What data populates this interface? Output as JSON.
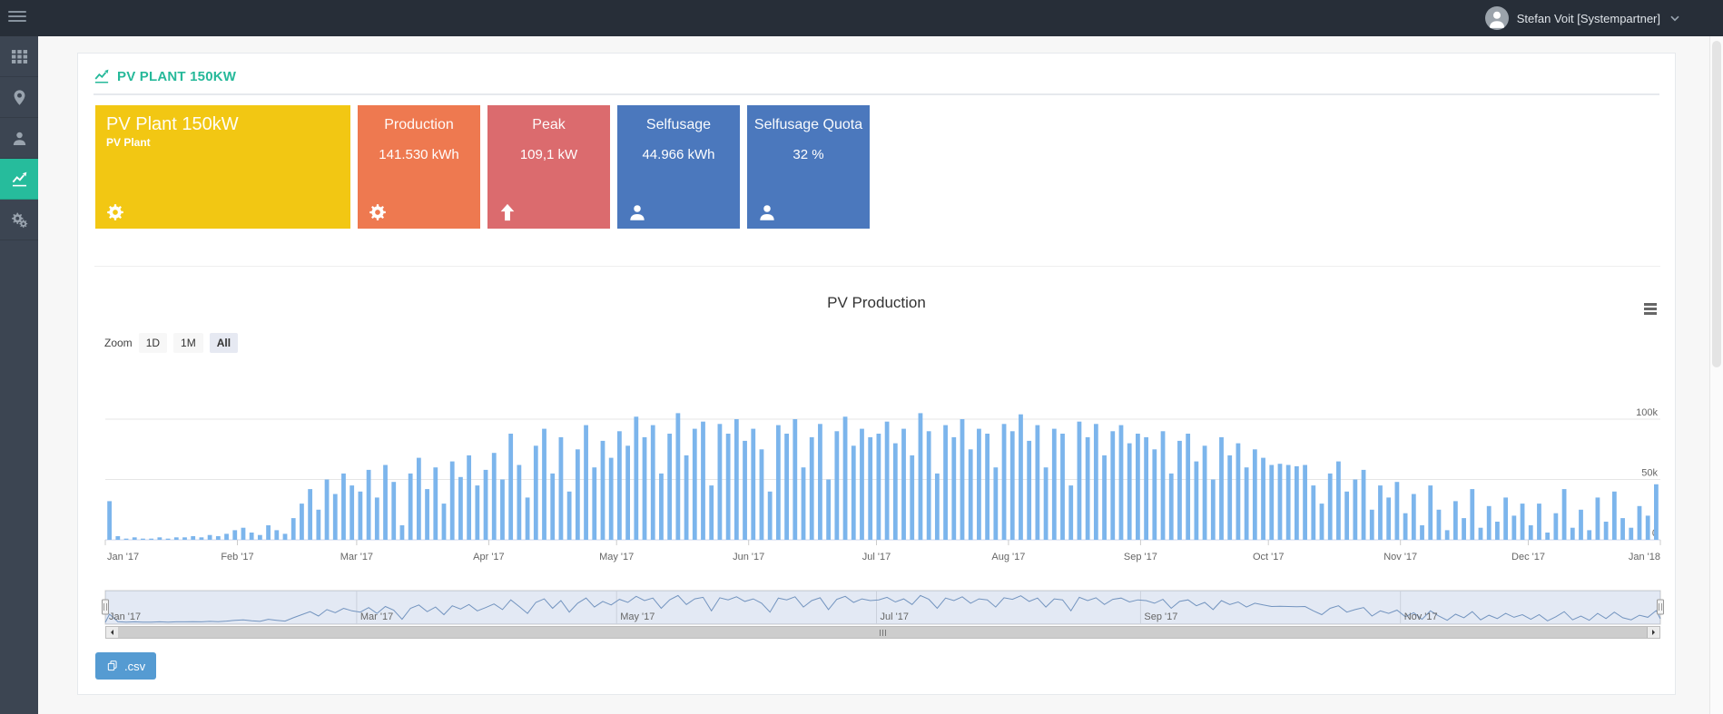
{
  "topbar": {
    "user_name": "Stefan Voit [Systempartner]"
  },
  "sidebar": {
    "items": [
      {
        "name": "dashboard",
        "icon": "grid-icon",
        "active": false
      },
      {
        "name": "locations",
        "icon": "map-marker-icon",
        "active": false
      },
      {
        "name": "users",
        "icon": "user-icon",
        "active": false
      },
      {
        "name": "charts",
        "icon": "chart-line-icon",
        "active": true
      },
      {
        "name": "settings",
        "icon": "cogs-icon",
        "active": false
      }
    ]
  },
  "page": {
    "title": "PV PLANT 150KW",
    "title_icon": "chart-line-icon",
    "accent_color": "#26b99a"
  },
  "tiles": [
    {
      "title": "PV Plant 150kW",
      "subtitle": "PV Plant",
      "value": "",
      "icon": "gear-icon",
      "color": "#f2c713",
      "wide": true
    },
    {
      "title": "Production",
      "subtitle": "",
      "value": "141.530 kWh",
      "icon": "gear-icon",
      "color": "#ee7950",
      "wide": false
    },
    {
      "title": "Peak",
      "subtitle": "",
      "value": "109,1 kW",
      "icon": "arrow-up-icon",
      "color": "#db6b6e",
      "wide": false
    },
    {
      "title": "Selfusage",
      "subtitle": "",
      "value": "44.966 kWh",
      "icon": "user-icon",
      "color": "#4b78bd",
      "wide": false
    },
    {
      "title": "Selfusage Quota",
      "subtitle": "",
      "value": "32 %",
      "icon": "user-icon",
      "color": "#4b78bd",
      "wide": false
    }
  ],
  "chart": {
    "title": "PV Production",
    "zoom_label": "Zoom",
    "zoom_buttons": [
      "1D",
      "1M",
      "All"
    ],
    "selected_zoom": "All"
  },
  "export": {
    "csv_label": ".csv",
    "icon": "copy-icon",
    "button_color": "#559bd2"
  },
  "chart_data": {
    "type": "bar",
    "title": "PV Production",
    "bar_color": "#7cb5ec",
    "grid": true,
    "legend": "none",
    "x_axis": {
      "unit": "day",
      "total_days": 365,
      "ticks": [
        {
          "day": 0,
          "label": "Jan '17"
        },
        {
          "day": 31,
          "label": "Feb '17"
        },
        {
          "day": 59,
          "label": "Mar '17"
        },
        {
          "day": 90,
          "label": "Apr '17"
        },
        {
          "day": 120,
          "label": "May '17"
        },
        {
          "day": 151,
          "label": "Jun '17"
        },
        {
          "day": 181,
          "label": "Jul '17"
        },
        {
          "day": 212,
          "label": "Aug '17"
        },
        {
          "day": 243,
          "label": "Sep '17"
        },
        {
          "day": 273,
          "label": "Oct '17"
        },
        {
          "day": 304,
          "label": "Nov '17"
        },
        {
          "day": 334,
          "label": "Dec '17"
        },
        {
          "day": 365,
          "label": "Jan '18"
        }
      ]
    },
    "y_axis": {
      "unit": "k",
      "max": 110,
      "ticks": [
        {
          "value": 0,
          "label": "0"
        },
        {
          "value": 50,
          "label": "50k"
        },
        {
          "value": 100,
          "label": "100k"
        }
      ]
    },
    "series": [
      {
        "name": "PV Production",
        "type": "column",
        "color": "#7cb5ec",
        "note": "daily PV production Jan 2017 - Jan 2018, values in k (thousands), approx 2-day bins",
        "values_k": [
          32,
          3,
          1,
          2,
          1,
          1,
          2,
          1,
          2,
          2,
          3,
          2,
          4,
          3,
          5,
          8,
          10,
          6,
          4,
          12,
          8,
          5,
          18,
          30,
          42,
          25,
          50,
          38,
          55,
          45,
          40,
          58,
          35,
          62,
          48,
          12,
          55,
          68,
          42,
          60,
          30,
          65,
          52,
          70,
          45,
          58,
          72,
          50,
          88,
          62,
          35,
          78,
          92,
          55,
          85,
          40,
          75,
          95,
          60,
          82,
          68,
          90,
          78,
          102,
          85,
          95,
          55,
          88,
          105,
          70,
          92,
          98,
          45,
          96,
          88,
          100,
          82,
          92,
          75,
          40,
          95,
          88,
          100,
          60,
          85,
          96,
          50,
          90,
          102,
          78,
          92,
          85,
          88,
          98,
          80,
          92,
          70,
          105,
          90,
          55,
          95,
          85,
          100,
          75,
          92,
          88,
          60,
          96,
          90,
          104,
          82,
          95,
          60,
          92,
          88,
          45,
          98,
          85,
          96,
          70,
          90,
          95,
          80,
          88,
          85,
          75,
          90,
          55,
          82,
          88,
          65,
          78,
          50,
          85,
          70,
          80,
          60,
          75,
          68,
          62,
          63,
          62,
          61,
          62,
          45,
          30,
          55,
          65,
          40,
          50,
          58,
          25,
          45,
          35,
          48,
          22,
          38,
          12,
          45,
          25,
          8,
          32,
          18,
          42,
          10,
          28,
          15,
          35,
          20,
          30,
          12,
          30,
          6,
          22,
          42,
          10,
          25,
          8,
          35,
          15,
          40,
          18,
          10,
          28,
          20,
          46
        ]
      }
    ],
    "navigator": {
      "line_color": "#7798bf",
      "mask_color": "rgba(102,133,194,0.18)",
      "ticks": [
        {
          "day": 0,
          "label": "Jan '17"
        },
        {
          "day": 59,
          "label": "Mar '17"
        },
        {
          "day": 120,
          "label": "May '17"
        },
        {
          "day": 181,
          "label": "Jul '17"
        },
        {
          "day": 243,
          "label": "Sep '17"
        },
        {
          "day": 304,
          "label": "Nov '17"
        }
      ]
    }
  }
}
